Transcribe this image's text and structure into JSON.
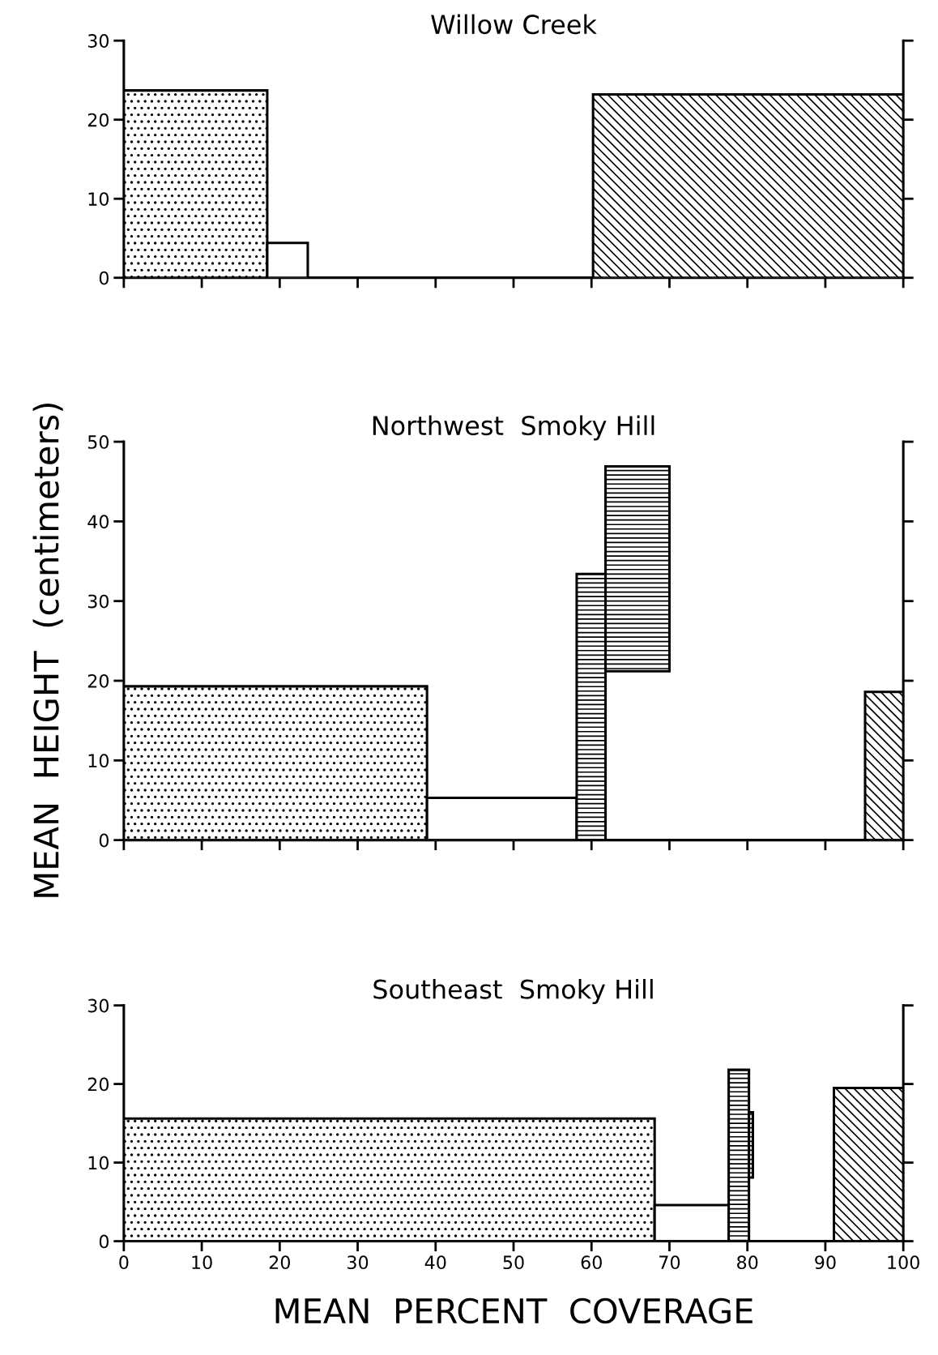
{
  "chart_data": [
    {
      "type": "histogram",
      "title": "Willow Creek",
      "xlim": [
        0,
        100
      ],
      "xticks": [
        0,
        10,
        20,
        30,
        40,
        50,
        60,
        70,
        80,
        90,
        100
      ],
      "ylim": [
        0,
        30
      ],
      "yticks": [
        0,
        10,
        20,
        30
      ],
      "tick_labels": "y",
      "bins": [
        0,
        18.4,
        23.6,
        60.2,
        100
      ],
      "values": [
        23.7,
        4.4,
        0,
        23.2
      ]
    },
    {
      "type": "histogram",
      "title": "Northwest  Smoky Hill",
      "ylabel": "MEAN  HEIGHT  (centimeters)",
      "xlim": [
        0,
        100
      ],
      "xticks": [
        0,
        10,
        20,
        30,
        40,
        50,
        60,
        70,
        80,
        90,
        100
      ],
      "ylim": [
        0,
        50
      ],
      "yticks": [
        0,
        10,
        20,
        30,
        40,
        50
      ],
      "tick_labels": "y",
      "bins": [
        0,
        38.9,
        58.1,
        61.8,
        70.0,
        95.1,
        100
      ],
      "values": [
        19.3,
        5.3,
        33.4,
        25.7,
        0,
        18.6
      ],
      "base": [
        0,
        0,
        0,
        21.2,
        0,
        0
      ]
    },
    {
      "type": "histogram",
      "title": "Southeast  Smoky Hill",
      "xlabel": "MEAN  PERCENT  COVERAGE",
      "xlim": [
        0,
        100
      ],
      "xticks": [
        0,
        10,
        20,
        30,
        40,
        50,
        60,
        70,
        80,
        90,
        100
      ],
      "ylim": [
        0,
        30
      ],
      "yticks": [
        0,
        10,
        20,
        30
      ],
      "bins": [
        0,
        68.1,
        77.6,
        80.2,
        80.7,
        91.1,
        100
      ],
      "values": [
        15.6,
        4.6,
        21.8,
        8.3,
        0,
        19.5
      ],
      "base": [
        0,
        0,
        0,
        8.1,
        0,
        0
      ]
    }
  ]
}
